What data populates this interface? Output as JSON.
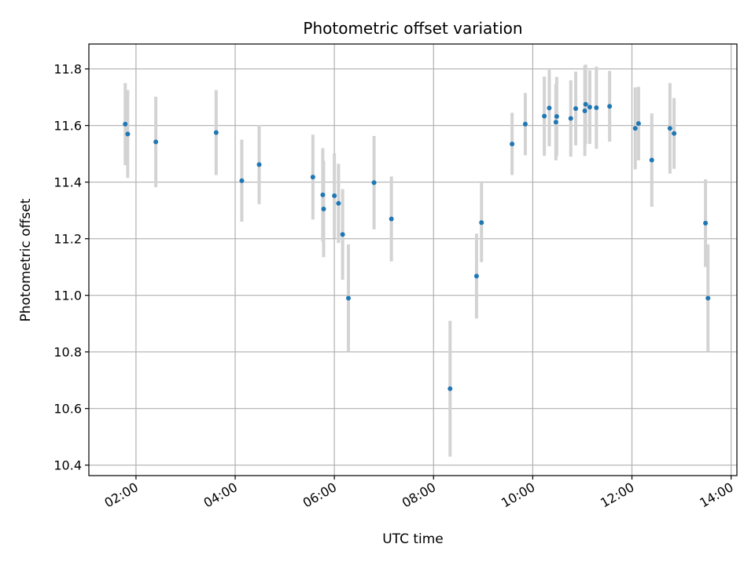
{
  "chart_data": {
    "type": "scatter",
    "title": "Photometric offset variation",
    "xlabel": "UTC time",
    "ylabel": "Photometric offset",
    "x_unit": "UTC time (HH:MM)",
    "xlim": [
      "01:03",
      "14:07"
    ],
    "ylim": [
      10.363,
      11.888
    ],
    "grid": true,
    "x_ticks": [
      "02:00",
      "04:00",
      "06:00",
      "08:00",
      "10:00",
      "12:00",
      "14:00"
    ],
    "y_ticks": [
      "10.4",
      "10.6",
      "10.8",
      "11.0",
      "11.2",
      "11.4",
      "11.6",
      "11.8"
    ],
    "series": [
      {
        "color": "#1f77b4",
        "errorbar_color": "#d3d3d3",
        "points": [
          {
            "x": "01:47",
            "y": 11.605,
            "err": 0.145
          },
          {
            "x": "01:50",
            "y": 11.57,
            "err": 0.155
          },
          {
            "x": "02:24",
            "y": 11.542,
            "err": 0.16
          },
          {
            "x": "03:37",
            "y": 11.575,
            "err": 0.15
          },
          {
            "x": "04:08",
            "y": 11.405,
            "err": 0.145
          },
          {
            "x": "04:29",
            "y": 11.462,
            "err": 0.14
          },
          {
            "x": "05:34",
            "y": 11.418,
            "err": 0.15
          },
          {
            "x": "05:46",
            "y": 11.355,
            "err": 0.165
          },
          {
            "x": "05:47",
            "y": 11.305,
            "err": 0.17
          },
          {
            "x": "06:00",
            "y": 11.352,
            "err": 0.15
          },
          {
            "x": "06:05",
            "y": 11.325,
            "err": 0.14
          },
          {
            "x": "06:10",
            "y": 11.215,
            "err": 0.16
          },
          {
            "x": "06:17",
            "y": 10.99,
            "err": 0.19
          },
          {
            "x": "06:48",
            "y": 11.398,
            "err": 0.165
          },
          {
            "x": "07:09",
            "y": 11.27,
            "err": 0.15
          },
          {
            "x": "08:20",
            "y": 10.67,
            "err": 0.24
          },
          {
            "x": "08:52",
            "y": 11.068,
            "err": 0.15
          },
          {
            "x": "08:58",
            "y": 11.257,
            "err": 0.14
          },
          {
            "x": "09:35",
            "y": 11.535,
            "err": 0.11
          },
          {
            "x": "09:51",
            "y": 11.605,
            "err": 0.11
          },
          {
            "x": "10:14",
            "y": 11.633,
            "err": 0.14
          },
          {
            "x": "10:20",
            "y": 11.662,
            "err": 0.135
          },
          {
            "x": "10:28",
            "y": 11.612,
            "err": 0.135
          },
          {
            "x": "10:29",
            "y": 11.632,
            "err": 0.14
          },
          {
            "x": "10:46",
            "y": 11.625,
            "err": 0.135
          },
          {
            "x": "10:52",
            "y": 11.66,
            "err": 0.13
          },
          {
            "x": "11:03",
            "y": 11.652,
            "err": 0.16
          },
          {
            "x": "11:04",
            "y": 11.675,
            "err": 0.14
          },
          {
            "x": "11:09",
            "y": 11.665,
            "err": 0.13
          },
          {
            "x": "11:17",
            "y": 11.663,
            "err": 0.145
          },
          {
            "x": "11:33",
            "y": 11.668,
            "err": 0.125
          },
          {
            "x": "12:04",
            "y": 11.59,
            "err": 0.145
          },
          {
            "x": "12:08",
            "y": 11.607,
            "err": 0.13
          },
          {
            "x": "12:24",
            "y": 11.478,
            "err": 0.165
          },
          {
            "x": "12:46",
            "y": 11.59,
            "err": 0.16
          },
          {
            "x": "12:51",
            "y": 11.572,
            "err": 0.125
          },
          {
            "x": "13:29",
            "y": 11.255,
            "err": 0.155
          },
          {
            "x": "13:32",
            "y": 10.99,
            "err": 0.19
          }
        ]
      }
    ]
  }
}
